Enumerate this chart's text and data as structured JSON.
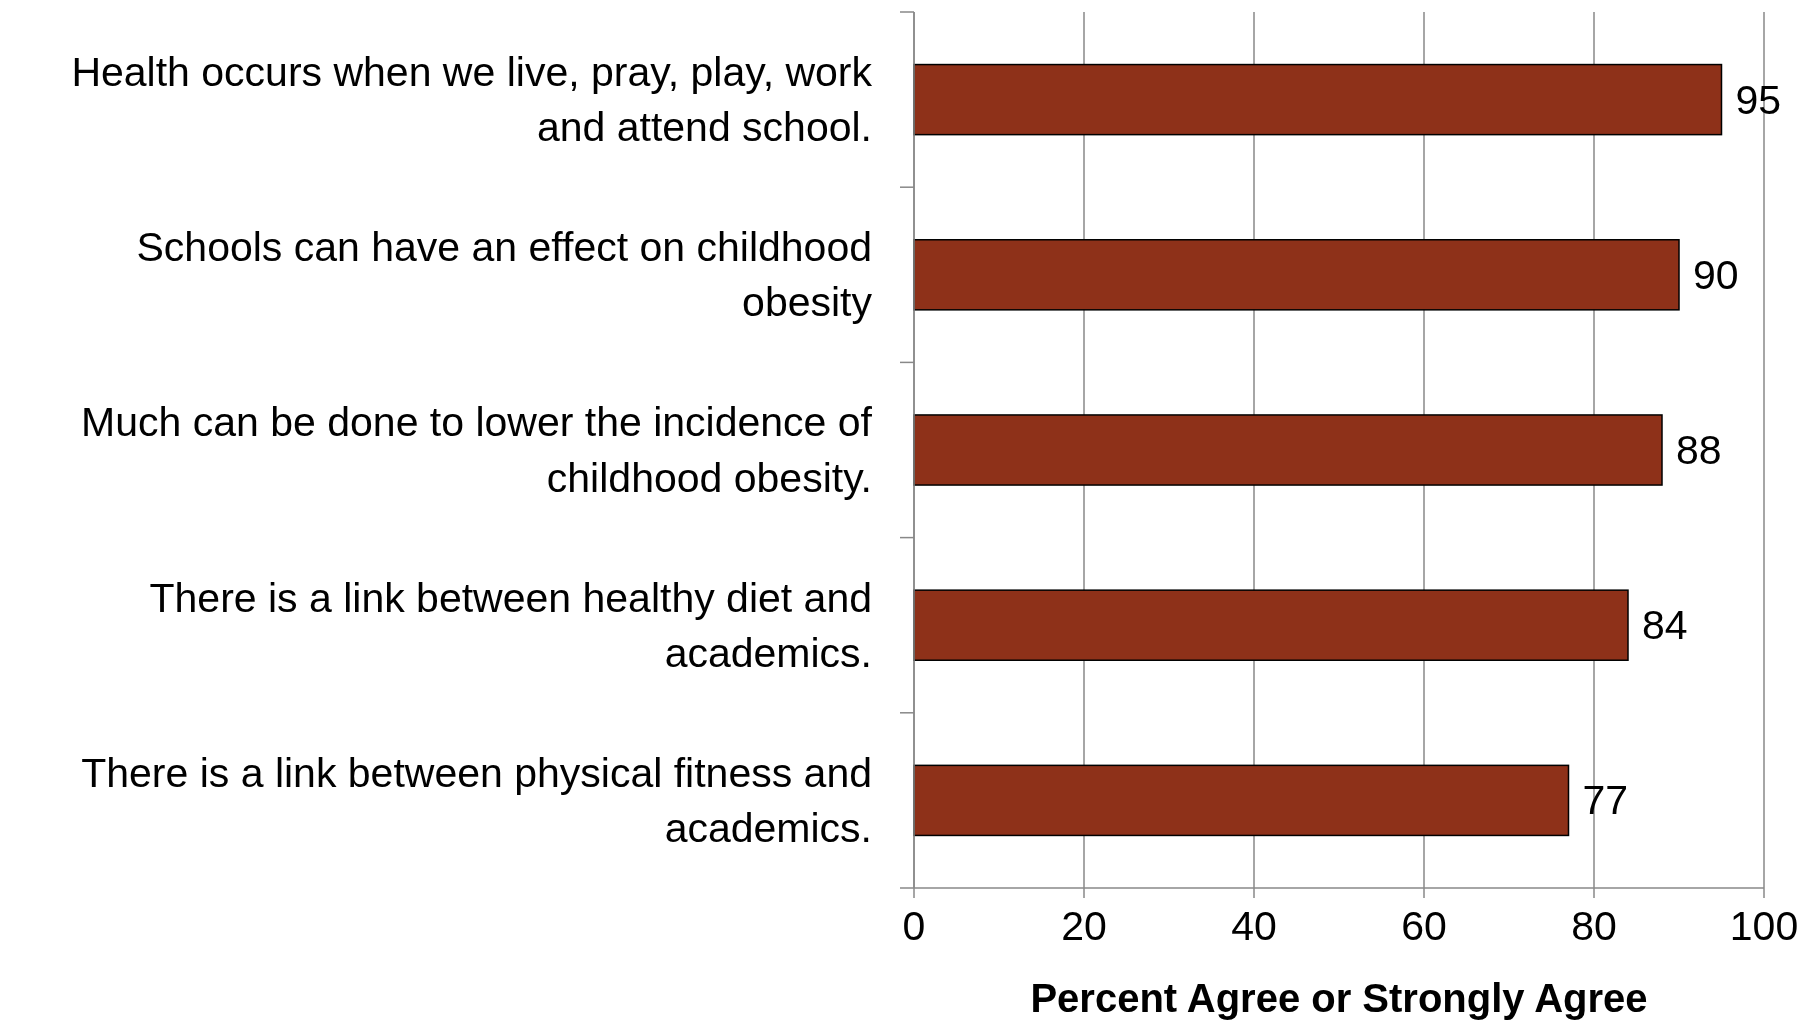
{
  "chart_data": {
    "type": "bar",
    "orientation": "horizontal",
    "xlabel": "Percent Agree or Strongly Agree",
    "categories": [
      "Health occurs when we live, pray, play, work and attend school.",
      "Schools can have an effect on childhood obesity",
      "Much can be done to lower the incidence of childhood obesity.",
      "There is a link between healthy diet and academics.",
      "There is a link between physical fitness and academics."
    ],
    "values": [
      95,
      90,
      88,
      84,
      77
    ],
    "color": "#8e3119",
    "data_labels": true,
    "xlim": [
      0,
      100
    ],
    "xticks": [
      0,
      20,
      40,
      60,
      80,
      100
    ],
    "grid": "x"
  }
}
